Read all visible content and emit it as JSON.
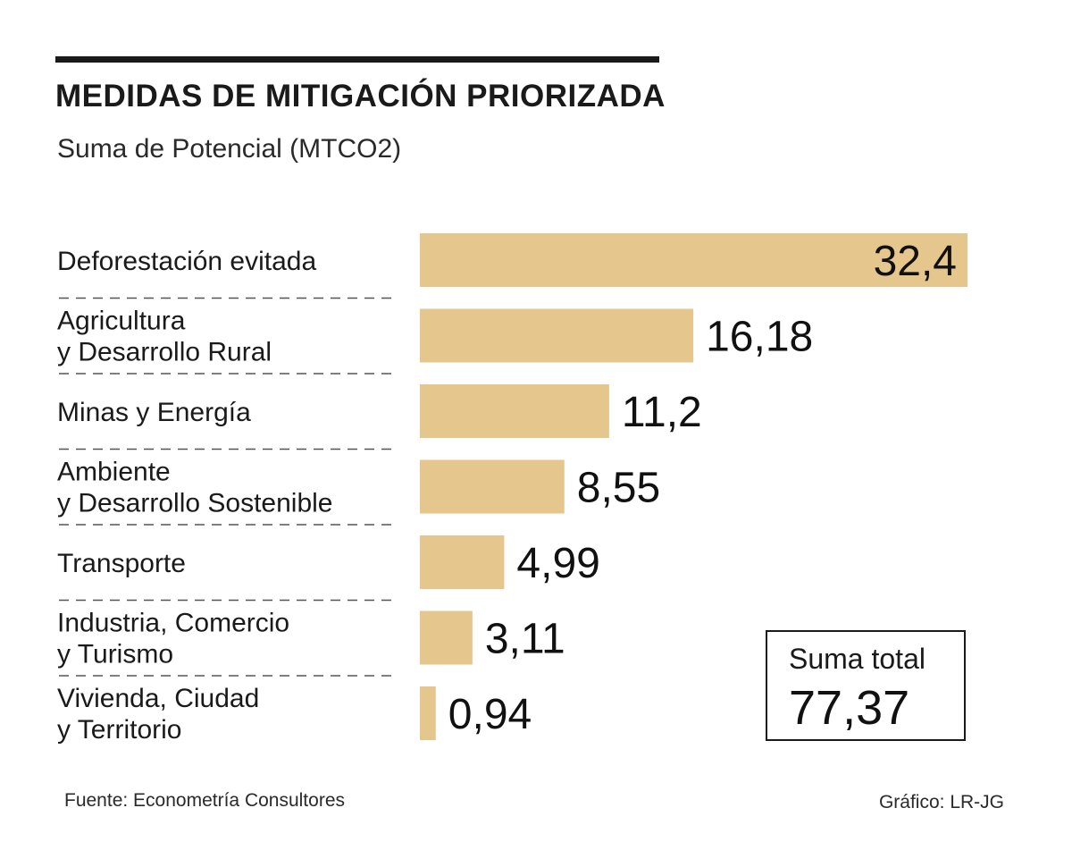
{
  "header": {
    "title": "MEDIDAS DE MITIGACIÓN PRIORIZADA",
    "subtitle": "Suma de Potencial (MTCO2)"
  },
  "chart_data": {
    "type": "bar",
    "orientation": "horizontal",
    "title": "MEDIDAS DE MITIGACIÓN PRIORIZADA",
    "subtitle": "Suma de Potencial (MTCO2)",
    "xlabel": "",
    "ylabel": "",
    "xlim": [
      0,
      32.4
    ],
    "categories": [
      [
        "Deforestación evitada"
      ],
      [
        "Agricultura",
        "y Desarrollo Rural"
      ],
      [
        "Minas y Energía"
      ],
      [
        "Ambiente",
        "y Desarrollo Sostenible"
      ],
      [
        "Transporte"
      ],
      [
        "Industria, Comercio",
        "y Turismo"
      ],
      [
        "Vivienda, Ciudad",
        "y Territorio"
      ]
    ],
    "values": [
      32.4,
      16.18,
      11.2,
      8.55,
      4.99,
      3.11,
      0.94
    ],
    "value_labels": [
      "32,4",
      "16,18",
      "11,2",
      "8,55",
      "4,99",
      "3,11",
      "0,94"
    ],
    "bar_color": "#e5c78e",
    "grid": false
  },
  "total": {
    "label": "Suma total",
    "value": "77,37"
  },
  "footer": {
    "source": "Fuente: Econometría Consultores",
    "credit": "Gráfico: LR-JG"
  }
}
